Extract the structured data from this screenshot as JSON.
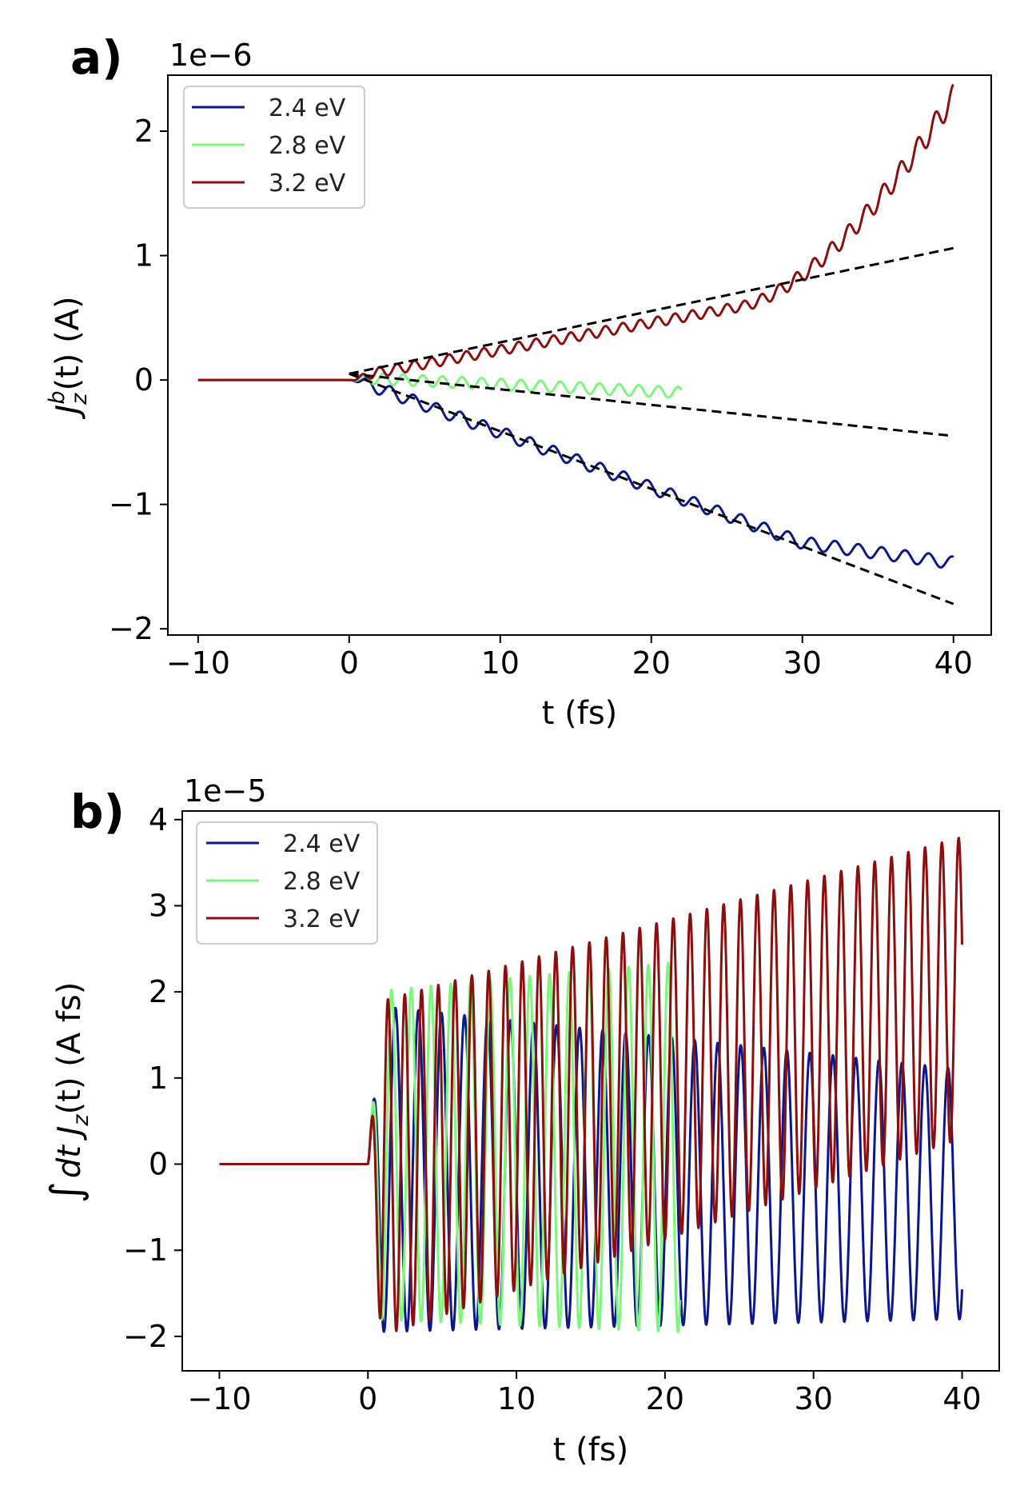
{
  "chart_data": [
    {
      "type": "line",
      "panel_label": "a)",
      "exponent_label": "1e−6",
      "xlabel": "t (fs)",
      "ylabel": "J_z^b(t) (A)",
      "ylabel_parts": {
        "main": "J",
        "sub": "z",
        "sup": "b",
        "rest": "(t) (A)"
      },
      "xlim": [
        -12,
        42.5
      ],
      "ylim": [
        -2.05,
        2.45
      ],
      "xticks": [
        -10,
        0,
        10,
        20,
        30,
        40
      ],
      "xtick_labels": [
        "−10",
        "0",
        "10",
        "20",
        "30",
        "40"
      ],
      "yticks": [
        -2,
        -1,
        0,
        1,
        2
      ],
      "ytick_labels": [
        "−2",
        "−1",
        "0",
        "1",
        "2"
      ],
      "legend_position": "upper-left",
      "series": [
        {
          "name": "2.4 eV",
          "color": "#0c1788",
          "t_range": [
            -10,
            40
          ],
          "baseline": 0,
          "slope_per_fs": -0.0443,
          "osc_amplitude": 0.05,
          "osc_period_fs": 1.55,
          "late_plateau": -1.47,
          "plateau_start_fs": 30
        },
        {
          "name": "2.8 eV",
          "color": "#7cf77c",
          "t_range": [
            -10,
            22
          ],
          "baseline": 0,
          "slope_per_fs": -0.0055,
          "osc_amplitude": 0.045,
          "osc_period_fs": 1.3
        },
        {
          "name": "3.2 eV",
          "color": "#8b0f0f",
          "t_range": [
            -10,
            40
          ],
          "baseline": 0,
          "slope_per_fs": 0.022,
          "osc_amplitude": 0.04,
          "osc_period_fs": 1.15,
          "growth_start_fs": 26,
          "end_value": 2.28
        }
      ],
      "fit_lines": [
        {
          "name": "fit-2.4",
          "color": "#000000",
          "dash": true,
          "x": [
            0,
            40
          ],
          "y": [
            0.05,
            -1.8
          ]
        },
        {
          "name": "fit-2.8",
          "color": "#000000",
          "dash": true,
          "x": [
            0,
            40
          ],
          "y": [
            0.05,
            -0.45
          ]
        },
        {
          "name": "fit-3.2",
          "color": "#000000",
          "dash": true,
          "x": [
            0,
            40
          ],
          "y": [
            0.05,
            1.06
          ]
        }
      ]
    },
    {
      "type": "line",
      "panel_label": "b)",
      "exponent_label": "1e−5",
      "xlabel": "t (fs)",
      "ylabel": "∫ dt J_z(t) (A fs)",
      "ylabel_parts": {
        "integral": "∫",
        "main": "dt J",
        "sub": "z",
        "rest": "(t) (A fs)"
      },
      "xlim": [
        -12.5,
        42.5
      ],
      "ylim": [
        -2.4,
        4.1
      ],
      "xticks": [
        -10,
        0,
        10,
        20,
        30,
        40
      ],
      "xtick_labels": [
        "−10",
        "0",
        "10",
        "20",
        "30",
        "40"
      ],
      "yticks": [
        -2,
        -1,
        0,
        1,
        2,
        3,
        4
      ],
      "ytick_labels": [
        "−2",
        "−1",
        "0",
        "1",
        "2",
        "3",
        "4"
      ],
      "legend_position": "upper-left",
      "series": [
        {
          "name": "2.4 eV",
          "color": "#0c1788",
          "t_range": [
            -10,
            40
          ],
          "baseline": 0,
          "osc_period_fs": 1.55,
          "center_start": -0.05,
          "center_end": -0.35,
          "amp_start": 1.9,
          "amp_end": 1.45
        },
        {
          "name": "2.8 eV",
          "color": "#7cf77c",
          "t_range": [
            -10,
            21
          ],
          "baseline": 0,
          "osc_period_fs": 1.33,
          "center_start": 0.1,
          "center_end": 0.2,
          "amp_start": 1.9,
          "amp_end": 2.15
        },
        {
          "name": "3.2 eV",
          "color": "#8b0f0f",
          "t_range": [
            -10,
            40
          ],
          "baseline": 0,
          "osc_period_fs": 1.13,
          "center_start": -0.1,
          "center_end": 2.05,
          "amp_start": 1.95,
          "amp_end": 1.75
        }
      ]
    }
  ]
}
